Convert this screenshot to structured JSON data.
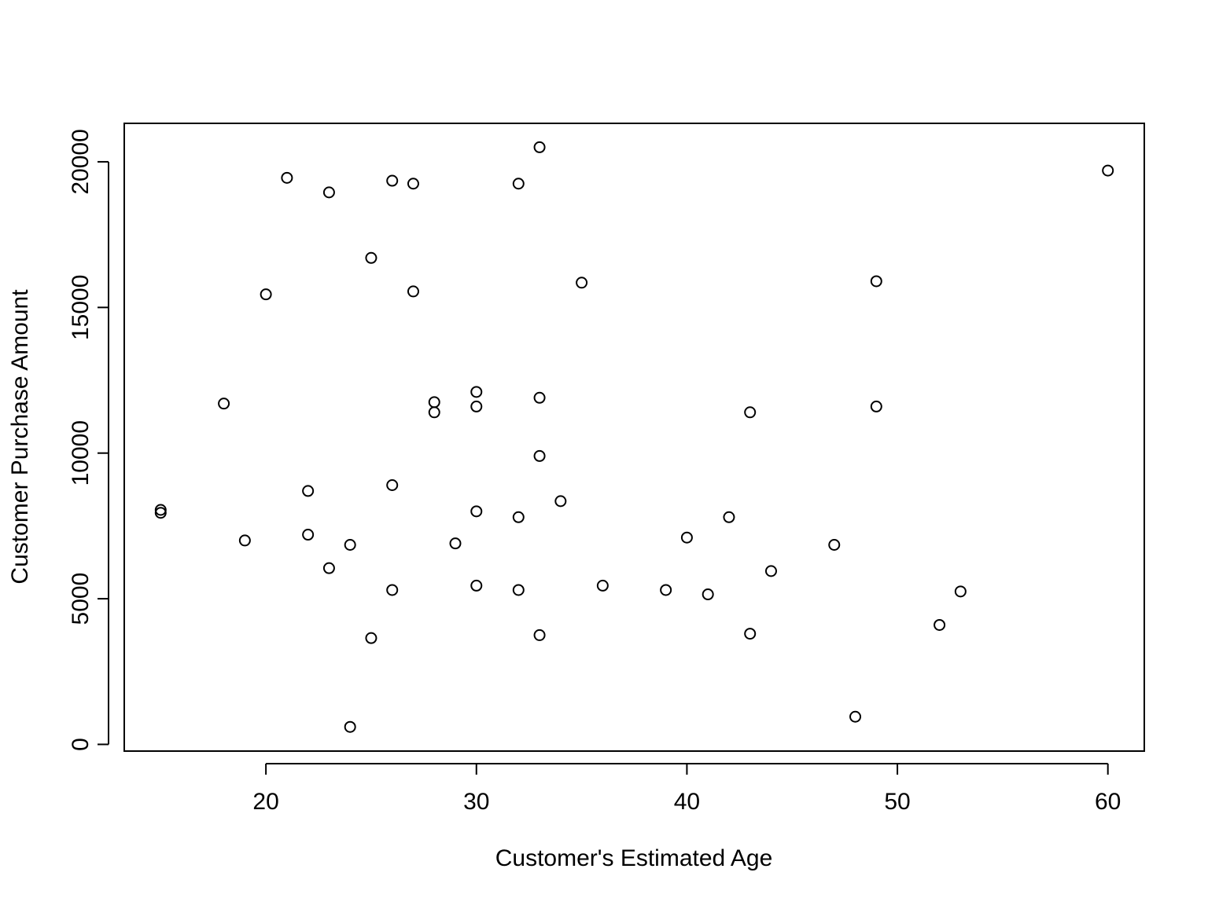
{
  "chart_data": {
    "type": "scatter",
    "title": "",
    "xlabel": "Customer's Estimated Age",
    "ylabel": "Customer Purchase Amount",
    "xlim": [
      13.27,
      61.73
    ],
    "ylim": [
      -230,
      21320
    ],
    "x_ticks": [
      20,
      30,
      40,
      50,
      60
    ],
    "y_ticks": [
      0,
      5000,
      10000,
      15000,
      20000
    ],
    "x_tick_labels": [
      "20",
      "30",
      "40",
      "50",
      "60"
    ],
    "y_tick_labels": [
      "0",
      "5000",
      "10000",
      "15000",
      "20000"
    ],
    "grid": false,
    "legend": "none",
    "marker": "open-circle",
    "colors": {
      "points": "#000000",
      "background": "#ffffff",
      "axes": "#000000"
    },
    "points": [
      {
        "x": 15,
        "y": 8050
      },
      {
        "x": 15,
        "y": 7950
      },
      {
        "x": 18,
        "y": 11700
      },
      {
        "x": 19,
        "y": 7000
      },
      {
        "x": 20,
        "y": 15450
      },
      {
        "x": 21,
        "y": 19450
      },
      {
        "x": 22,
        "y": 8700
      },
      {
        "x": 22,
        "y": 7200
      },
      {
        "x": 23,
        "y": 18950
      },
      {
        "x": 23,
        "y": 6050
      },
      {
        "x": 24,
        "y": 6850
      },
      {
        "x": 24,
        "y": 600
      },
      {
        "x": 25,
        "y": 16700
      },
      {
        "x": 25,
        "y": 3650
      },
      {
        "x": 26,
        "y": 19350
      },
      {
        "x": 26,
        "y": 8900
      },
      {
        "x": 26,
        "y": 5300
      },
      {
        "x": 27,
        "y": 19250
      },
      {
        "x": 27,
        "y": 15550
      },
      {
        "x": 28,
        "y": 11750
      },
      {
        "x": 28,
        "y": 11400
      },
      {
        "x": 29,
        "y": 6900
      },
      {
        "x": 30,
        "y": 12100
      },
      {
        "x": 30,
        "y": 11600
      },
      {
        "x": 30,
        "y": 8000
      },
      {
        "x": 30,
        "y": 5450
      },
      {
        "x": 32,
        "y": 19250
      },
      {
        "x": 32,
        "y": 7800
      },
      {
        "x": 32,
        "y": 5300
      },
      {
        "x": 33,
        "y": 20500
      },
      {
        "x": 33,
        "y": 11900
      },
      {
        "x": 33,
        "y": 9900
      },
      {
        "x": 33,
        "y": 3750
      },
      {
        "x": 34,
        "y": 8350
      },
      {
        "x": 35,
        "y": 15850
      },
      {
        "x": 36,
        "y": 5450
      },
      {
        "x": 39,
        "y": 5300
      },
      {
        "x": 40,
        "y": 7100
      },
      {
        "x": 41,
        "y": 5150
      },
      {
        "x": 42,
        "y": 7800
      },
      {
        "x": 43,
        "y": 11400
      },
      {
        "x": 43,
        "y": 3800
      },
      {
        "x": 44,
        "y": 5950
      },
      {
        "x": 47,
        "y": 6850
      },
      {
        "x": 48,
        "y": 950
      },
      {
        "x": 49,
        "y": 15900
      },
      {
        "x": 49,
        "y": 11600
      },
      {
        "x": 52,
        "y": 4100
      },
      {
        "x": 53,
        "y": 5250
      },
      {
        "x": 60,
        "y": 19700
      }
    ]
  }
}
